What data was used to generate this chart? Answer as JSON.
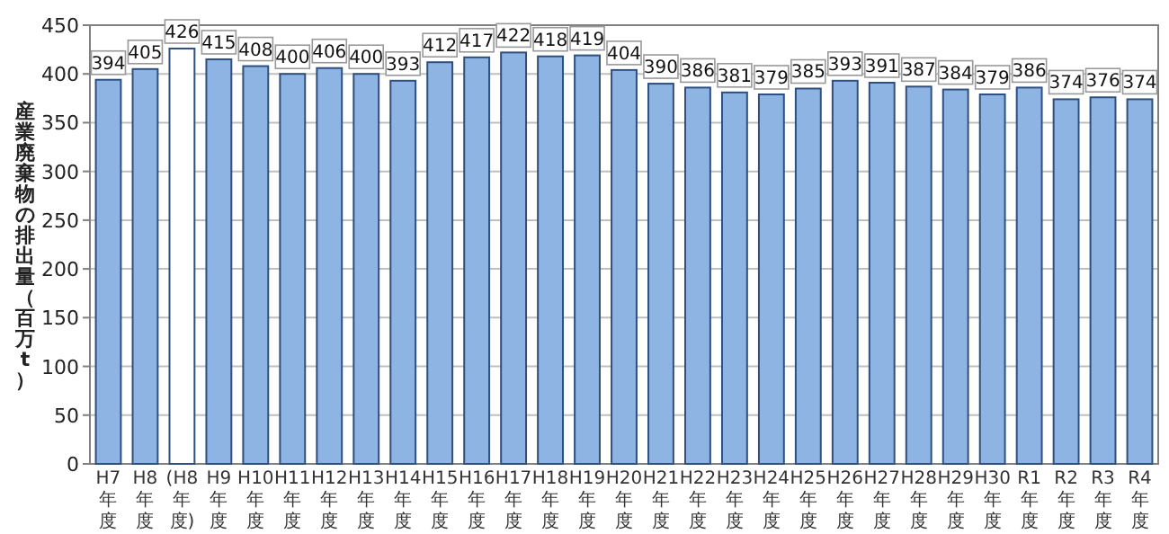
{
  "chart_data": {
    "type": "bar",
    "ylabel": "産業廃棄物の排出量（百万t）",
    "categories": [
      "H7年度",
      "H8年度",
      "(H8年度)",
      "H9年度",
      "H10年度",
      "H11年度",
      "H12年度",
      "H13年度",
      "H14年度",
      "H15年度",
      "H16年度",
      "H17年度",
      "H18年度",
      "H19年度",
      "H20年度",
      "H21年度",
      "H22年度",
      "H23年度",
      "H24年度",
      "H25年度",
      "H26年度",
      "H27年度",
      "H28年度",
      "H29年度",
      "H30年度",
      "R1年度",
      "R2年度",
      "R3年度",
      "R4年度"
    ],
    "values": [
      394,
      405,
      426,
      415,
      408,
      400,
      406,
      400,
      393,
      412,
      417,
      422,
      418,
      419,
      404,
      390,
      386,
      381,
      379,
      385,
      393,
      391,
      387,
      384,
      379,
      386,
      374,
      376,
      374
    ],
    "colors": [
      "#8db4e2",
      "#8db4e2",
      "#ffffff",
      "#8db4e2",
      "#8db4e2",
      "#8db4e2",
      "#8db4e2",
      "#8db4e2",
      "#8db4e2",
      "#8db4e2",
      "#8db4e2",
      "#8db4e2",
      "#8db4e2",
      "#8db4e2",
      "#8db4e2",
      "#8db4e2",
      "#8db4e2",
      "#8db4e2",
      "#8db4e2",
      "#8db4e2",
      "#8db4e2",
      "#8db4e2",
      "#8db4e2",
      "#8db4e2",
      "#8db4e2",
      "#8db4e2",
      "#8db4e2",
      "#8db4e2",
      "#8db4e2"
    ],
    "ylim": [
      0,
      450
    ],
    "yticks": [
      0,
      50,
      100,
      150,
      200,
      250,
      300,
      350,
      400,
      450
    ],
    "grid": "y",
    "data_labels": true
  }
}
